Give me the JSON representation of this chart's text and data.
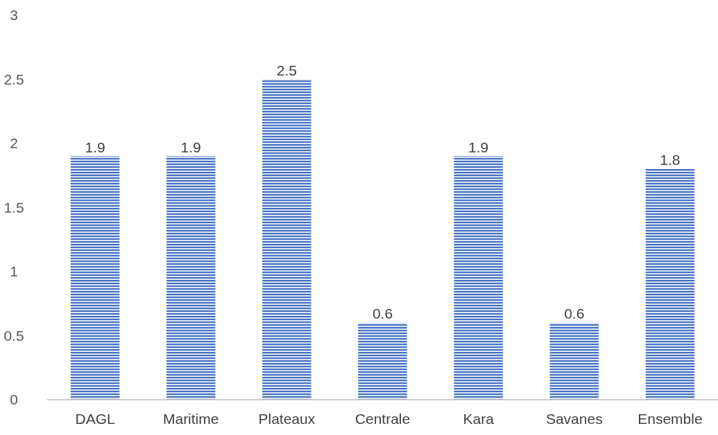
{
  "chart_data": {
    "type": "bar",
    "categories": [
      "DAGL",
      "Maritime",
      "Plateaux",
      "Centrale",
      "Kara",
      "Savanes",
      "Ensemble"
    ],
    "values": [
      1.9,
      1.9,
      2.5,
      0.6,
      1.9,
      0.6,
      1.8
    ],
    "color": "#4472c4",
    "ylim": [
      0,
      3
    ],
    "yticks": [
      0,
      0.5,
      1,
      1.5,
      2,
      2.5,
      3
    ],
    "grid": false,
    "data_labels": true
  }
}
